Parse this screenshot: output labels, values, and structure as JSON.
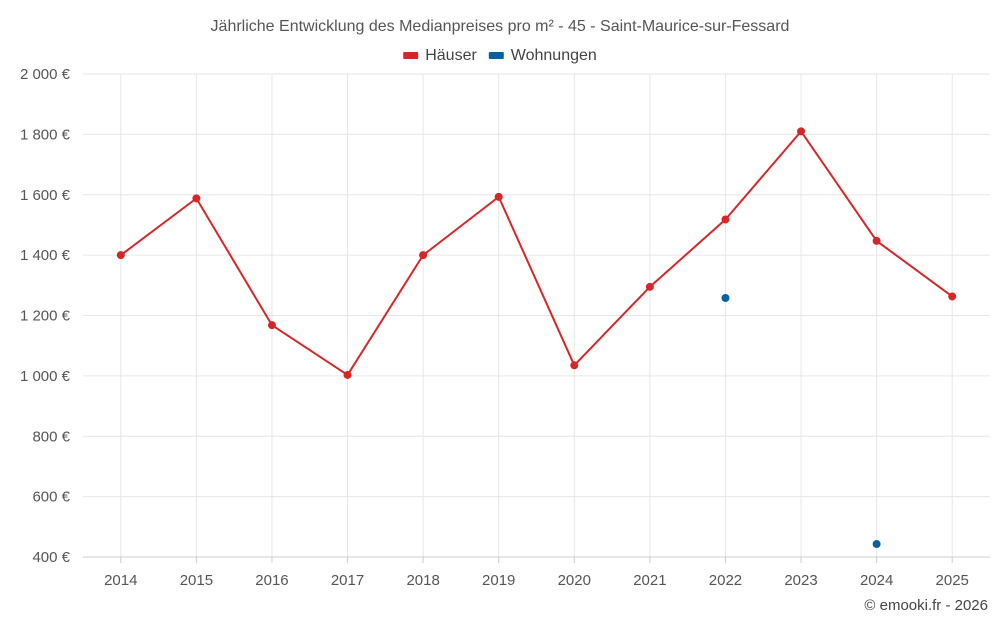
{
  "chart_data": {
    "type": "line",
    "title": "Jährliche Entwicklung des Medianpreises pro m² - 45 - Saint-Maurice-sur-Fessard",
    "categories": [
      "2014",
      "2015",
      "2016",
      "2017",
      "2018",
      "2019",
      "2020",
      "2021",
      "2022",
      "2023",
      "2024",
      "2025"
    ],
    "series": [
      {
        "name": "Häuser",
        "color": "#d62728",
        "values": [
          1400,
          1588,
          1168,
          1003,
          1400,
          1593,
          1035,
          1295,
          1518,
          1810,
          1447,
          1263
        ]
      },
      {
        "name": "Wohnungen",
        "color": "#0a5fa0",
        "values": [
          null,
          null,
          null,
          null,
          null,
          null,
          null,
          null,
          1258,
          null,
          443,
          null
        ]
      }
    ],
    "ylim": [
      400,
      2000
    ],
    "yticks": [
      400,
      600,
      800,
      1000,
      1200,
      1400,
      1600,
      1800,
      2000
    ],
    "ytick_labels": [
      "400 €",
      "600 €",
      "800 €",
      "1 000 €",
      "1 200 €",
      "1 400 €",
      "1 600 €",
      "1 800 €",
      "2 000 €"
    ],
    "xlabel": "",
    "ylabel": "",
    "grid": true,
    "legend_position": "top-center"
  },
  "credit": "© emooki.fr - 2026"
}
